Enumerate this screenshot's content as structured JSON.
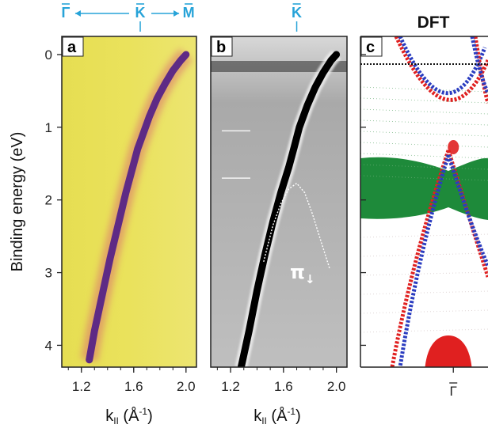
{
  "chart_data": [
    {
      "type": "heatmap",
      "panel_label": "a",
      "xlabel": "k",
      "xlabel_sub": "II",
      "xlabel_unit": " (Å",
      "xlabel_unit_sup": "-1",
      "xlabel_close": ")",
      "ylabel": "Binding energy (eV)",
      "xlim": [
        1.05,
        2.08
      ],
      "ylim": [
        4.3,
        -0.25
      ],
      "xticks": [
        "1.2",
        "1.6",
        "2.0"
      ],
      "xtick_values": [
        1.2,
        1.6,
        2.0
      ],
      "yticks": [
        "0",
        "1",
        "2",
        "3",
        "4"
      ],
      "ytick_values": [
        0,
        1,
        2,
        3,
        4
      ],
      "top_labels": [
        "Γ",
        "K",
        "M"
      ],
      "top_label_positions": [
        1.08,
        1.65,
        2.02
      ],
      "band": {
        "k": [
          1.26,
          1.3,
          1.36,
          1.42,
          1.48,
          1.54,
          1.6,
          1.63,
          1.66,
          1.72,
          1.78,
          1.84,
          1.9,
          1.96,
          2.0
        ],
        "energy": [
          4.2,
          3.8,
          3.3,
          2.8,
          2.35,
          1.9,
          1.5,
          1.3,
          1.15,
          0.85,
          0.6,
          0.4,
          0.22,
          0.08,
          0.0
        ]
      },
      "colors": {
        "background": "#e8e04c",
        "band": "#5e2a85"
      }
    },
    {
      "type": "heatmap",
      "panel_label": "b",
      "xlabel": "k",
      "xlabel_sub": "II",
      "xlabel_unit": " (Å",
      "xlabel_unit_sup": "-1",
      "xlabel_close": ")",
      "xlim": [
        1.05,
        2.08
      ],
      "ylim": [
        4.3,
        -0.25
      ],
      "xticks": [
        "1.2",
        "1.6",
        "2.0"
      ],
      "xtick_values": [
        1.2,
        1.6,
        2.0
      ],
      "top_labels": [
        "K"
      ],
      "top_label_positions": [
        1.7
      ],
      "band": {
        "k": [
          1.28,
          1.34,
          1.4,
          1.46,
          1.52,
          1.58,
          1.64,
          1.68,
          1.72,
          1.78,
          1.84,
          1.9,
          1.96,
          2.0
        ],
        "energy": [
          4.3,
          3.8,
          3.25,
          2.75,
          2.3,
          1.9,
          1.55,
          1.28,
          1.0,
          0.7,
          0.45,
          0.25,
          0.08,
          0.0
        ]
      },
      "pi_band": {
        "label": "π",
        "label_sub": "↓",
        "k": [
          1.45,
          1.52,
          1.58,
          1.64,
          1.7,
          1.76,
          1.82,
          1.88,
          1.95
        ],
        "energy": [
          2.85,
          2.35,
          2.05,
          1.85,
          1.77,
          1.9,
          2.2,
          2.55,
          2.95
        ]
      },
      "markers_energy": [
        1.05,
        1.7
      ],
      "colors": {
        "background": "#b9b9b9",
        "band": "#000000"
      }
    },
    {
      "type": "scatter",
      "panel_label": "c",
      "title": "DFT",
      "xticks": [
        "Γ"
      ],
      "xtick_values": [
        0
      ],
      "xlim": [
        -0.75,
        0.28
      ],
      "ylim": [
        4.3,
        -0.25
      ],
      "fermi_level": 0,
      "series": [
        {
          "color": "#e02020",
          "points_desc": "dirac-like bands"
        },
        {
          "color": "#2a3cc0",
          "points_desc": "dirac-like bands"
        },
        {
          "color": "#1e8a3a",
          "points_desc": "flat band region"
        }
      ],
      "green_band_range": [
        1.3,
        2.15
      ],
      "colors": {
        "red": "#e02020",
        "blue": "#2a3cc0",
        "green": "#1e8a3a"
      }
    }
  ]
}
